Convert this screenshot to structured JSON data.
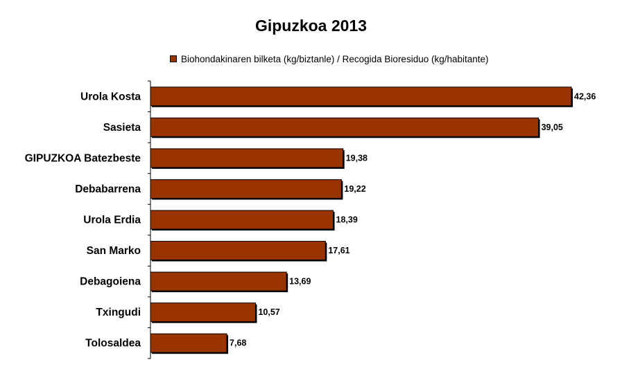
{
  "chart_data": {
    "type": "bar",
    "orientation": "horizontal",
    "title": "Gipuzkoa 2013",
    "xlabel": "",
    "ylabel": "",
    "grid": false,
    "legend_position": "top",
    "bar_color": "#993300",
    "categories": [
      "Urola Kosta",
      "Sasieta",
      "GIPUZKOA Batezbeste",
      "Debabarrena",
      "Urola Erdia",
      "San Marko",
      "Debagoiena",
      "Txingudi",
      "Tolosaldea"
    ],
    "series": [
      {
        "name": "Biohondakinaren bilketa (kg/biztanle) / Recogida Bioresiduo (kg/habitante)",
        "values": [
          42.36,
          39.05,
          19.38,
          19.22,
          18.39,
          17.61,
          13.69,
          10.57,
          7.68
        ],
        "labels": [
          "42,36",
          "39,05",
          "19,38",
          "19,22",
          "18,39",
          "17,61",
          "13,69",
          "10,57",
          "7,68"
        ]
      }
    ]
  }
}
